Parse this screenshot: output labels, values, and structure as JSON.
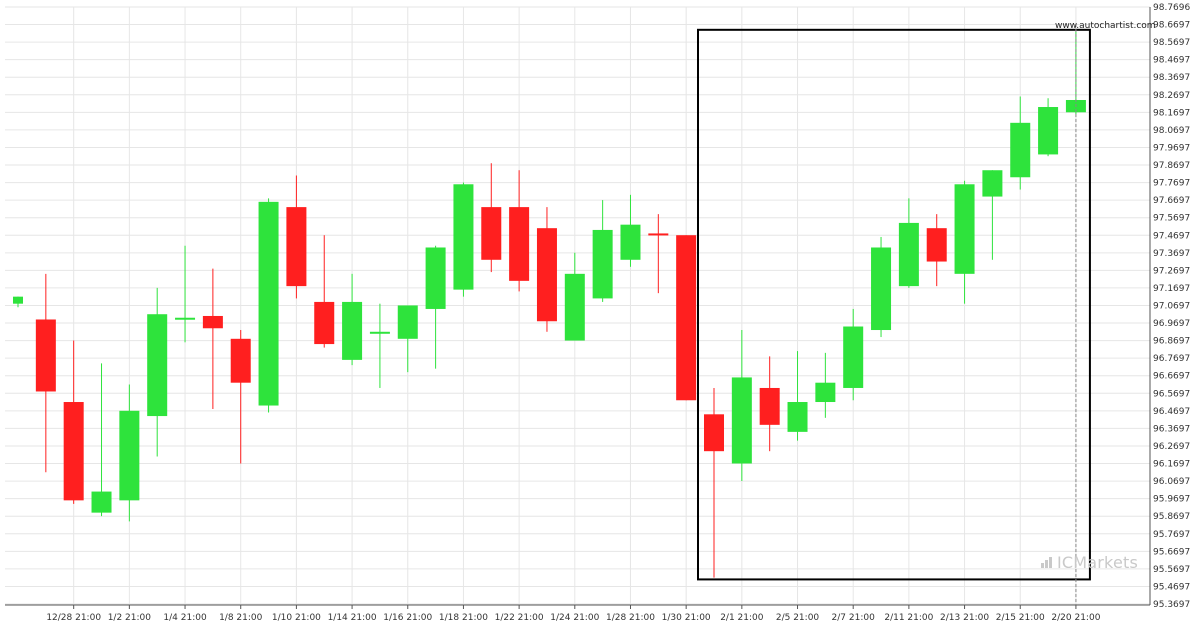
{
  "site_label": "www.autochartist.com",
  "watermark": "ICMarkets",
  "colors": {
    "up": "#2ee33c",
    "down": "#ff1f1f",
    "grid": "#e6e6e6",
    "axis_text": "#333333",
    "pattern_box": "#000000"
  },
  "chart_data": {
    "type": "candlestick",
    "title": "",
    "grid": true,
    "y_ticks": [
      "98.7696",
      "98.6697",
      "98.5697",
      "98.4697",
      "98.3697",
      "98.2697",
      "98.1697",
      "98.0697",
      "97.9697",
      "97.8697",
      "97.7697",
      "97.6697",
      "97.5697",
      "97.4697",
      "97.3697",
      "97.2697",
      "97.1697",
      "97.0697",
      "96.9697",
      "96.8697",
      "96.7697",
      "96.6697",
      "96.5697",
      "96.4697",
      "96.3697",
      "96.2697",
      "96.1697",
      "96.0697",
      "95.9697",
      "95.8697",
      "95.7697",
      "95.6697",
      "95.5697",
      "95.4697",
      "95.3697"
    ],
    "ylim": [
      95.3697,
      98.7696
    ],
    "x_ticks": [
      "12/28 21:00",
      "1/2 21:00",
      "1/4 21:00",
      "1/8 21:00",
      "1/10 21:00",
      "1/14 21:00",
      "1/16 21:00",
      "1/18 21:00",
      "1/22 21:00",
      "1/24 21:00",
      "1/28 21:00",
      "1/30 21:00",
      "2/1 21:00",
      "2/5 21:00",
      "2/7 21:00",
      "2/11 21:00",
      "2/13 21:00",
      "2/15 21:00",
      "2/20 21:00"
    ],
    "candles": [
      {
        "o": 97.08,
        "h": 97.12,
        "l": 97.06,
        "c": 97.12
      },
      {
        "o": 96.99,
        "h": 97.25,
        "l": 96.12,
        "c": 96.58
      },
      {
        "o": 96.52,
        "h": 96.87,
        "l": 95.94,
        "c": 95.96
      },
      {
        "o": 95.89,
        "h": 96.74,
        "l": 95.87,
        "c": 96.01
      },
      {
        "o": 95.96,
        "h": 96.62,
        "l": 95.84,
        "c": 96.47
      },
      {
        "o": 96.44,
        "h": 97.17,
        "l": 96.21,
        "c": 97.02
      },
      {
        "o": 97.0,
        "h": 97.41,
        "l": 96.86,
        "c": 97.0
      },
      {
        "o": 97.01,
        "h": 97.28,
        "l": 96.48,
        "c": 96.94
      },
      {
        "o": 96.88,
        "h": 96.93,
        "l": 96.17,
        "c": 96.63
      },
      {
        "o": 96.5,
        "h": 97.68,
        "l": 96.46,
        "c": 97.66
      },
      {
        "o": 97.63,
        "h": 97.81,
        "l": 97.11,
        "c": 97.18
      },
      {
        "o": 97.09,
        "h": 97.47,
        "l": 96.83,
        "c": 96.85
      },
      {
        "o": 96.76,
        "h": 97.25,
        "l": 96.73,
        "c": 97.09
      },
      {
        "o": 96.91,
        "h": 97.08,
        "l": 96.6,
        "c": 96.92
      },
      {
        "o": 96.88,
        "h": 97.07,
        "l": 96.69,
        "c": 97.07
      },
      {
        "o": 97.05,
        "h": 97.41,
        "l": 96.71,
        "c": 97.4
      },
      {
        "o": 97.16,
        "h": 97.77,
        "l": 97.12,
        "c": 97.76
      },
      {
        "o": 97.63,
        "h": 97.88,
        "l": 97.26,
        "c": 97.33
      },
      {
        "o": 97.63,
        "h": 97.84,
        "l": 97.15,
        "c": 97.21
      },
      {
        "o": 97.51,
        "h": 97.63,
        "l": 96.92,
        "c": 96.98
      },
      {
        "o": 96.87,
        "h": 97.37,
        "l": 96.87,
        "c": 97.25
      },
      {
        "o": 97.11,
        "h": 97.67,
        "l": 97.09,
        "c": 97.5
      },
      {
        "o": 97.33,
        "h": 97.7,
        "l": 97.29,
        "c": 97.53
      },
      {
        "o": 97.48,
        "h": 97.59,
        "l": 97.14,
        "c": 97.47
      },
      {
        "o": 97.47,
        "h": 97.47,
        "l": 96.53,
        "c": 96.53
      },
      {
        "o": 96.45,
        "h": 96.6,
        "l": 95.52,
        "c": 96.24
      },
      {
        "o": 96.17,
        "h": 96.93,
        "l": 96.07,
        "c": 96.66
      },
      {
        "o": 96.6,
        "h": 96.78,
        "l": 96.24,
        "c": 96.39
      },
      {
        "o": 96.35,
        "h": 96.81,
        "l": 96.3,
        "c": 96.52
      },
      {
        "o": 96.52,
        "h": 96.8,
        "l": 96.43,
        "c": 96.63
      },
      {
        "o": 96.6,
        "h": 97.05,
        "l": 96.53,
        "c": 96.95
      },
      {
        "o": 96.93,
        "h": 97.46,
        "l": 96.89,
        "c": 97.4
      },
      {
        "o": 97.18,
        "h": 97.68,
        "l": 97.17,
        "c": 97.54
      },
      {
        "o": 97.51,
        "h": 97.59,
        "l": 97.18,
        "c": 97.32
      },
      {
        "o": 97.25,
        "h": 97.78,
        "l": 97.08,
        "c": 97.76
      },
      {
        "o": 97.69,
        "h": 97.84,
        "l": 97.33,
        "c": 97.84
      },
      {
        "o": 97.8,
        "h": 98.26,
        "l": 97.73,
        "c": 98.11
      },
      {
        "o": 97.93,
        "h": 98.25,
        "l": 97.92,
        "c": 98.2
      },
      {
        "o": 98.17,
        "h": 98.63,
        "l": 98.16,
        "c": 98.24
      }
    ],
    "pattern_box": {
      "start_index": 25,
      "end_index": 38,
      "upper": 98.6397,
      "lower": 95.5097
    }
  }
}
